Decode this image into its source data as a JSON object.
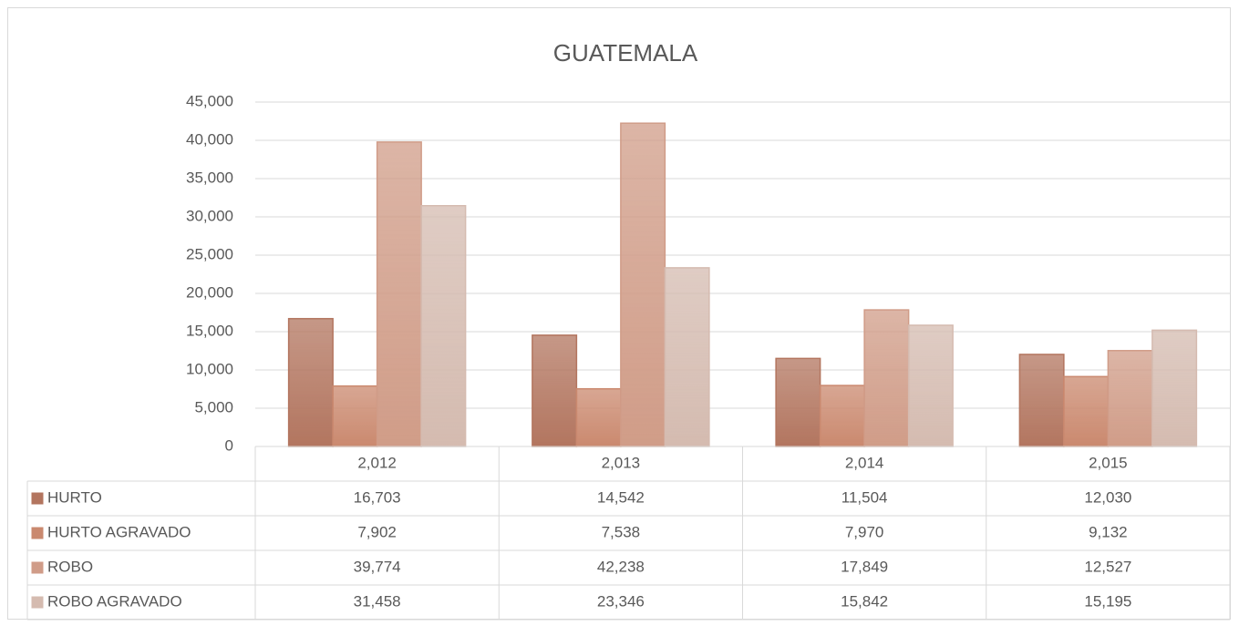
{
  "chart_data": {
    "type": "bar",
    "title": "GUATEMALA",
    "categories": [
      "2,012",
      "2,013",
      "2,014",
      "2,015"
    ],
    "series": [
      {
        "name": "HURTO",
        "color": "#d28a70",
        "values": [
          16703,
          14542,
          11504,
          12030
        ],
        "value_labels": [
          "16,703",
          "14,542",
          "11,504",
          "12,030"
        ]
      },
      {
        "name": "HURTO AGRAVADO",
        "color": "#eea182",
        "values": [
          7902,
          7538,
          7970,
          9132
        ],
        "value_labels": [
          "7,902",
          "7,538",
          "7,970",
          "9,132"
        ]
      },
      {
        "name": "ROBO",
        "color": "#f5b8a0",
        "values": [
          39774,
          42238,
          17849,
          12527
        ],
        "value_labels": [
          "39,774",
          "42,238",
          "17,849",
          "12,527"
        ]
      },
      {
        "name": "ROBO AGRAVADO",
        "color": "#fadccf",
        "values": [
          31458,
          23346,
          15842,
          15195
        ],
        "value_labels": [
          "31,458",
          "23,346",
          "15,842",
          "15,195"
        ]
      }
    ],
    "ylim": [
      0,
      45000
    ],
    "yticks": [
      0,
      {
        "value": 5000,
        "label": "5,000"
      },
      {
        "value": 10000,
        "label": "10,000"
      },
      {
        "value": 15000,
        "label": "15,000"
      },
      {
        "value": 20000,
        "label": "20,000"
      },
      {
        "value": 25000,
        "label": "25,000"
      },
      {
        "value": 30000,
        "label": "30,000"
      },
      {
        "value": 35000,
        "label": "35,000"
      },
      {
        "value": 40000,
        "label": "40,000"
      },
      {
        "value": 45000,
        "label": "45,000"
      }
    ],
    "grid": true
  }
}
